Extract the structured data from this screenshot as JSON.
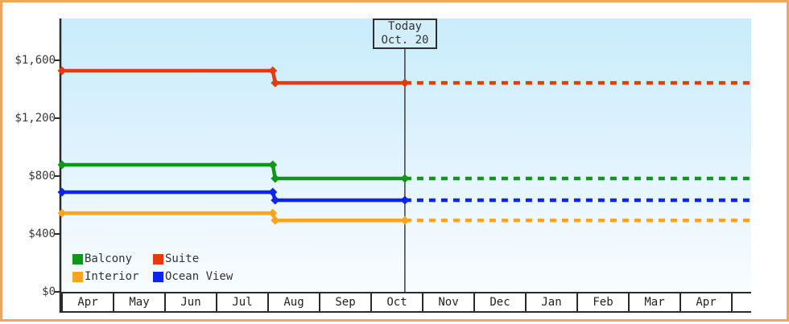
{
  "chart_data": {
    "type": "line",
    "title": "",
    "description": "Cabin price history by category with dotted projection after today",
    "x_axis": {
      "month_labels": [
        "Apr",
        "May",
        "Jun",
        "Jul",
        "Aug",
        "Sep",
        "Oct",
        "Nov",
        "Dec",
        "Jan",
        "Feb",
        "Mar",
        "Apr"
      ]
    },
    "y_axis": {
      "tick_labels": [
        "$0",
        "$400",
        "$800",
        "$1,200",
        "$1,600"
      ],
      "tick_values": [
        0,
        400,
        800,
        1200,
        1600
      ],
      "ylim": [
        0,
        1890
      ]
    },
    "today_marker": {
      "line1": "Today",
      "line2": "Oct. 20",
      "month_index": 6.67
    },
    "price_change_month_index": 4.13,
    "series": [
      {
        "name": "Balcony",
        "color": "#109618",
        "price_before": 878,
        "price_after": 783
      },
      {
        "name": "Suite",
        "color": "#e8380d",
        "price_before": 1528,
        "price_after": 1444
      },
      {
        "name": "Interior",
        "color": "#ffa41c",
        "price_before": 544,
        "price_after": 494
      },
      {
        "name": "Ocean View",
        "color": "#0b24f0",
        "price_before": 689,
        "price_after": 633
      }
    ],
    "legend_order": [
      "Balcony",
      "Suite",
      "Interior",
      "Ocean View"
    ],
    "line_style": {
      "solid_until": "today",
      "dashed_after": "today"
    }
  },
  "colors": {
    "frame_border": "#efa75e",
    "axis": "#2b2b2b",
    "today_line": "#3c3c3c",
    "plot_top": "#c9ecfc",
    "plot_bottom": "#f8fcff",
    "today_box_bg": "#d3eefb"
  }
}
